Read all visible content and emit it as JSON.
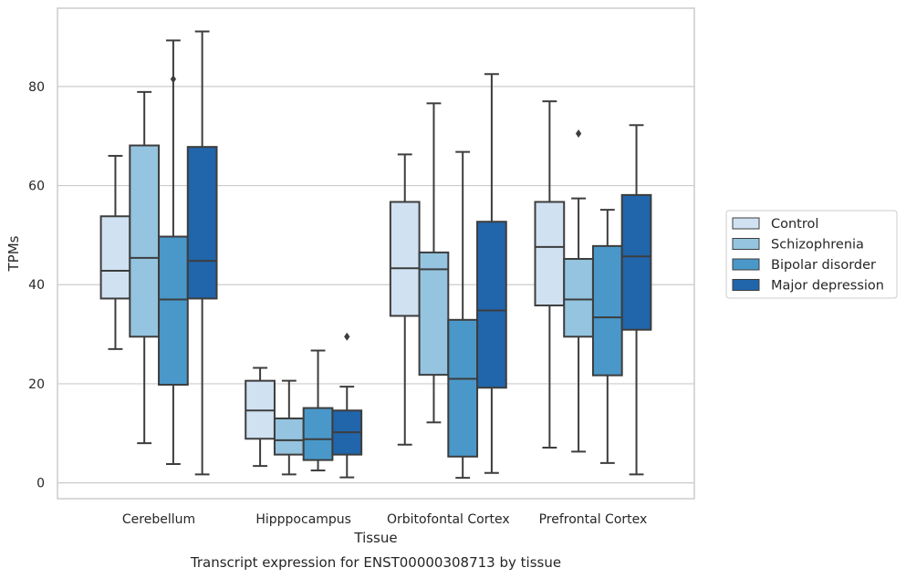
{
  "chart_data": {
    "type": "box",
    "xlabel": "Tissue",
    "ylabel": "TPMs",
    "caption": "Transcript expression for ENST00000308713 by tissue",
    "categories": [
      "Cerebellum",
      "Hipppocampus",
      "Orbitofontal Cortex",
      "Prefrontal Cortex"
    ],
    "y_ticks": [
      0,
      20,
      40,
      60,
      80
    ],
    "ylim": [
      -3.2,
      95.8
    ],
    "grid": "horizontal",
    "legend_placement": "right",
    "series": [
      {
        "name": "Control",
        "color": "#d0e1f2",
        "boxes": [
          {
            "whislo": 27.0,
            "q1": 37.2,
            "med": 42.8,
            "q3": 53.8,
            "whishi": 66.0,
            "fliers": []
          },
          {
            "whislo": 3.4,
            "q1": 8.9,
            "med": 14.6,
            "q3": 20.6,
            "whishi": 23.2,
            "fliers": []
          },
          {
            "whislo": 7.7,
            "q1": 33.7,
            "med": 43.3,
            "q3": 56.7,
            "whishi": 66.3,
            "fliers": []
          },
          {
            "whislo": 7.1,
            "q1": 35.8,
            "med": 47.6,
            "q3": 56.7,
            "whishi": 77.0,
            "fliers": []
          }
        ]
      },
      {
        "name": "Schizophrenia",
        "color": "#94c4df",
        "boxes": [
          {
            "whislo": 8.0,
            "q1": 29.5,
            "med": 45.4,
            "q3": 68.1,
            "whishi": 78.9,
            "fliers": []
          },
          {
            "whislo": 1.7,
            "q1": 5.7,
            "med": 8.6,
            "q3": 13.0,
            "whishi": 20.6,
            "fliers": []
          },
          {
            "whislo": 12.2,
            "q1": 21.8,
            "med": 43.1,
            "q3": 46.5,
            "whishi": 76.6,
            "fliers": []
          },
          {
            "whislo": 6.3,
            "q1": 29.5,
            "med": 37.0,
            "q3": 45.2,
            "whishi": 57.4,
            "fliers": [
              70.5
            ]
          }
        ]
      },
      {
        "name": "Bipolar disorder",
        "color": "#4a98c9",
        "boxes": [
          {
            "whislo": 3.8,
            "q1": 19.8,
            "med": 37.0,
            "q3": 49.7,
            "whishi": 89.3,
            "fliers": [
              81.5
            ]
          },
          {
            "whislo": 2.5,
            "q1": 4.6,
            "med": 8.8,
            "q3": 15.1,
            "whishi": 26.7,
            "fliers": []
          },
          {
            "whislo": 1.0,
            "q1": 5.3,
            "med": 21.0,
            "q3": 32.9,
            "whishi": 66.8,
            "fliers": []
          },
          {
            "whislo": 4.0,
            "q1": 21.7,
            "med": 33.4,
            "q3": 47.8,
            "whishi": 55.1,
            "fliers": []
          }
        ]
      },
      {
        "name": "Major depression",
        "color": "#2165ab",
        "boxes": [
          {
            "whislo": 1.7,
            "q1": 37.2,
            "med": 44.8,
            "q3": 67.8,
            "whishi": 91.1,
            "fliers": []
          },
          {
            "whislo": 1.1,
            "q1": 5.7,
            "med": 10.2,
            "q3": 14.6,
            "whishi": 19.4,
            "fliers": [
              29.5
            ]
          },
          {
            "whislo": 2.0,
            "q1": 19.2,
            "med": 34.8,
            "q3": 52.7,
            "whishi": 82.5,
            "fliers": []
          },
          {
            "whislo": 1.7,
            "q1": 30.9,
            "med": 45.7,
            "q3": 58.1,
            "whishi": 72.2,
            "fliers": []
          }
        ]
      }
    ]
  }
}
